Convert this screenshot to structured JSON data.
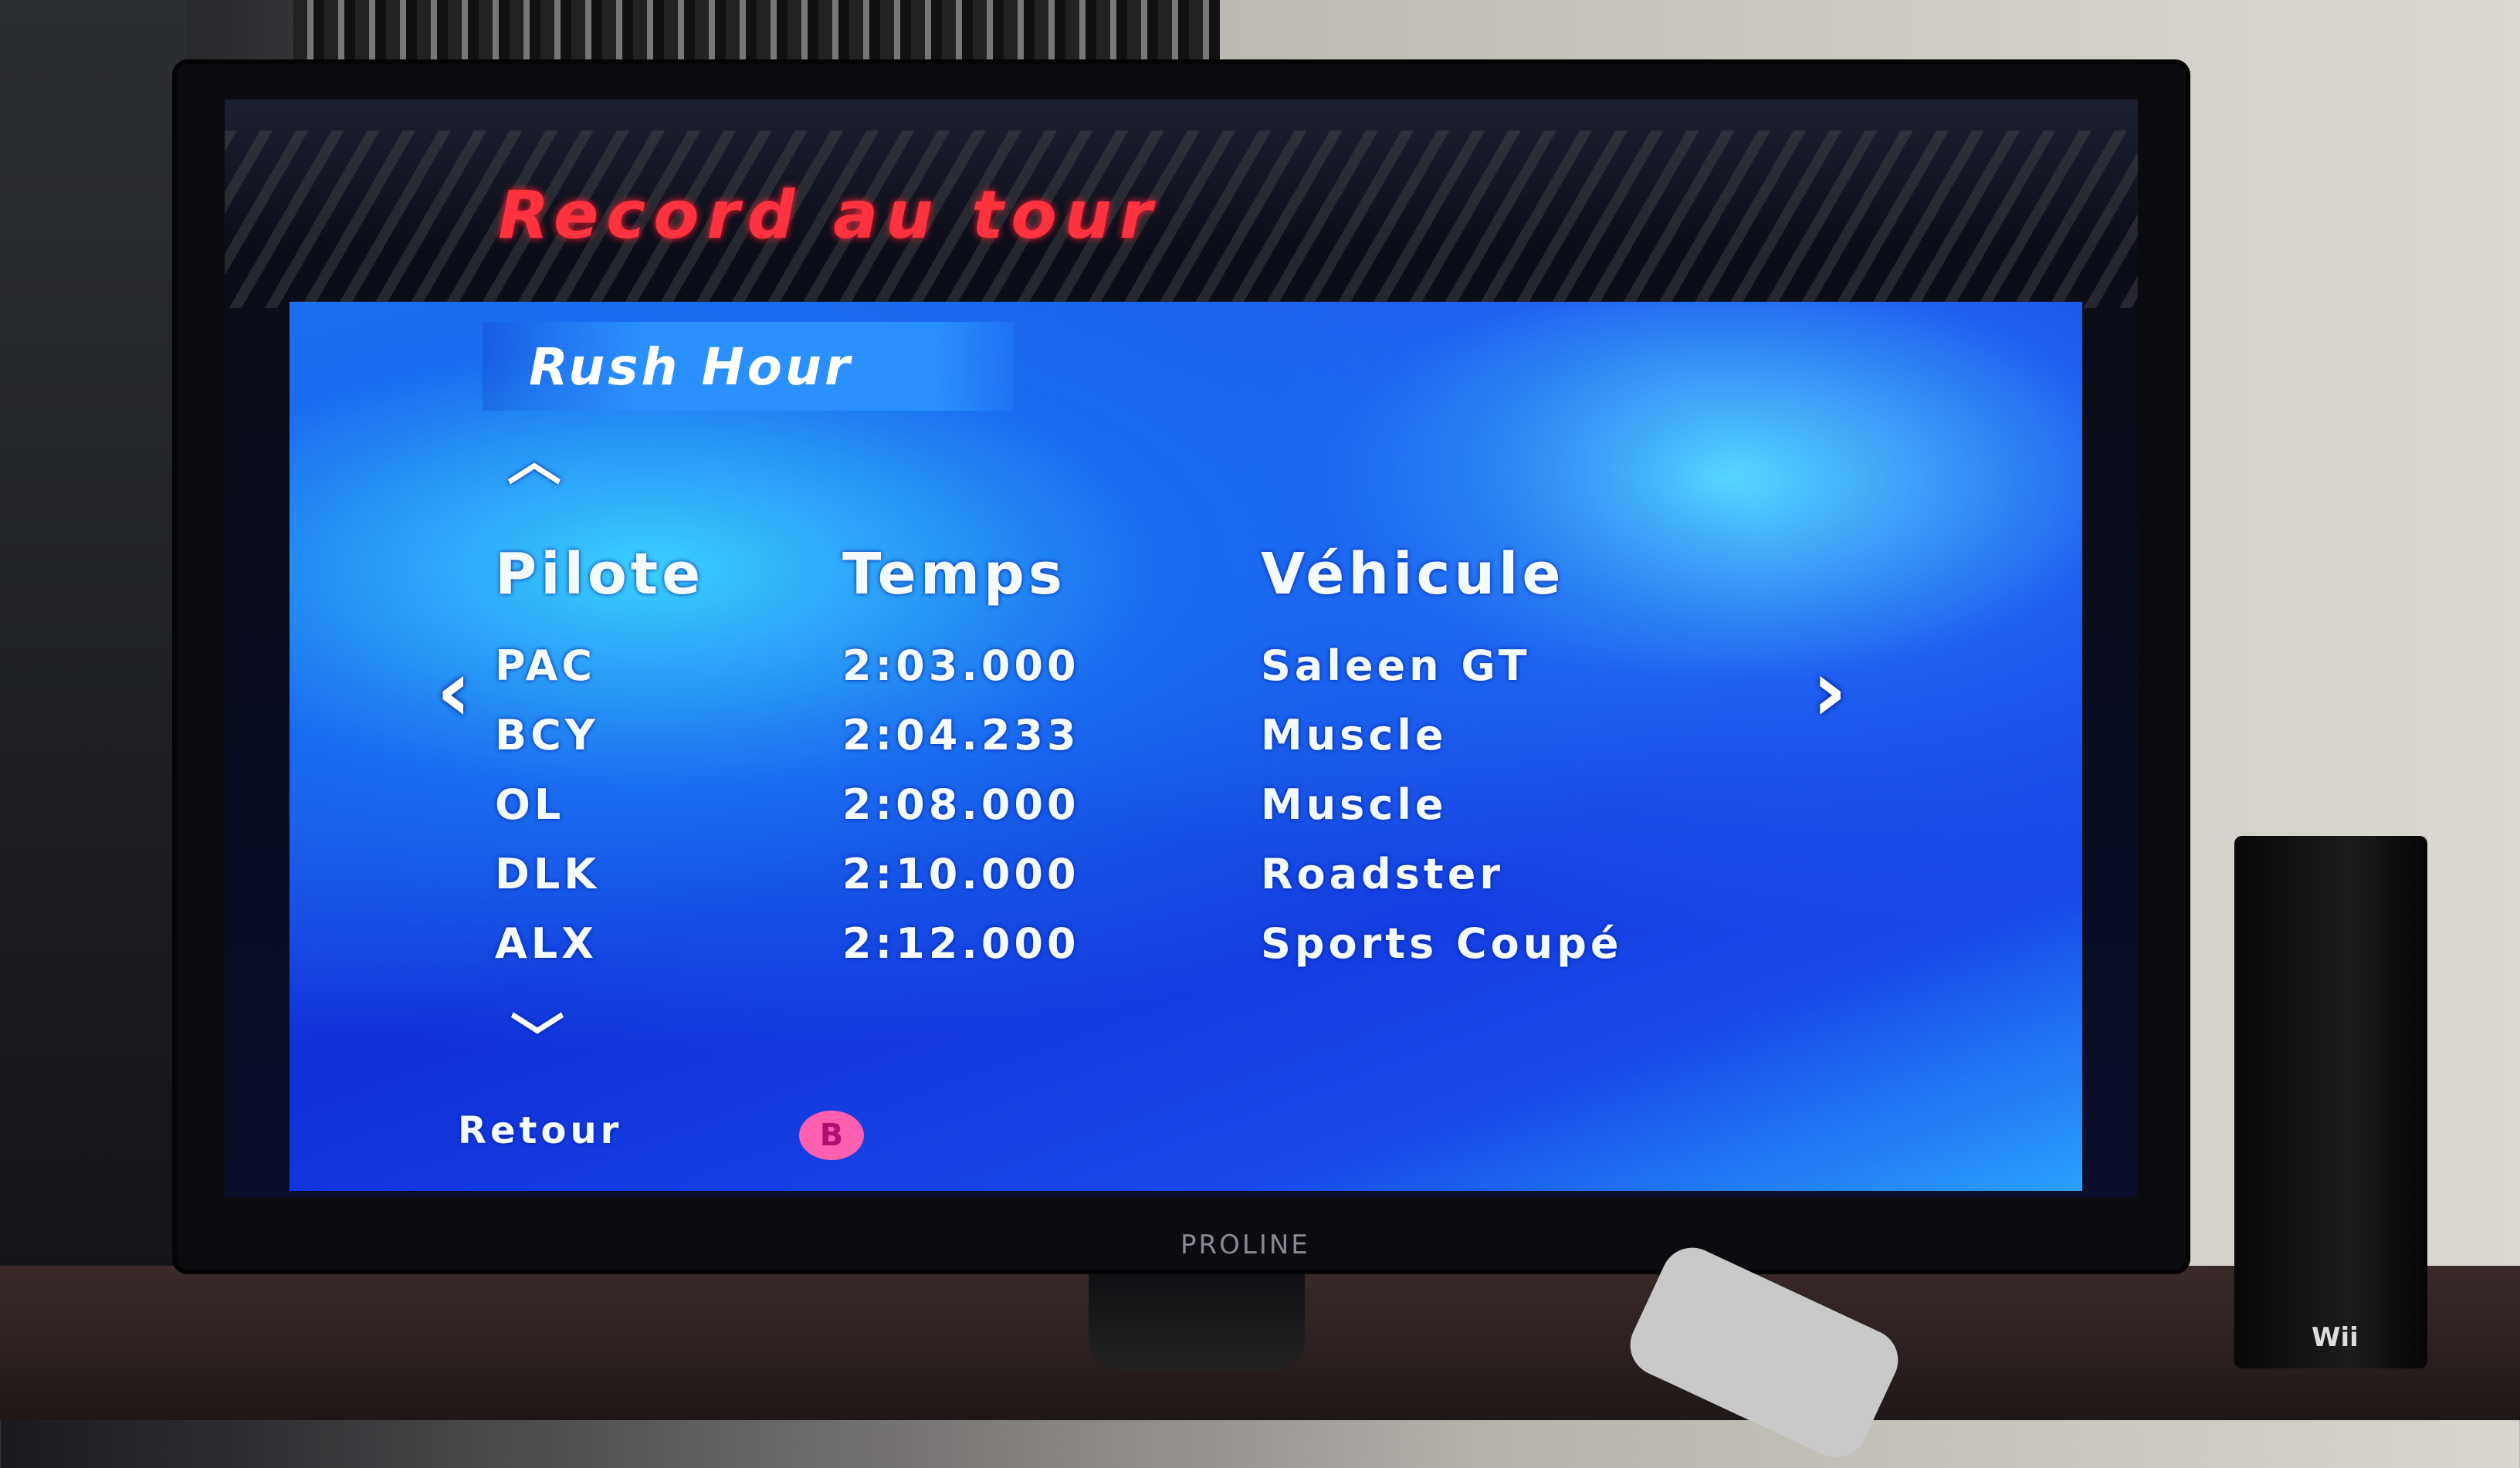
{
  "game": {
    "title": "Record au tour",
    "track": "Rush Hour",
    "columns": [
      "Pilote",
      "Temps",
      "Véhicule"
    ],
    "rows": [
      {
        "pilot": "PAC",
        "time": "2:03.000",
        "vehicle": "Saleen GT"
      },
      {
        "pilot": "BCY",
        "time": "2:04.233",
        "vehicle": "Muscle"
      },
      {
        "pilot": "OL",
        "time": "2:08.000",
        "vehicle": "Muscle"
      },
      {
        "pilot": "DLK",
        "time": "2:10.000",
        "vehicle": "Roadster"
      },
      {
        "pilot": "ALX",
        "time": "2:12.000",
        "vehicle": "Sports Coupé"
      }
    ],
    "back_label": "Retour",
    "back_button": "B",
    "colors": {
      "title": "#ff3340",
      "panel": "#1a4cf0",
      "b_button": "#ff5fb0"
    }
  },
  "tv": {
    "brand": "PROLINE"
  },
  "console": {
    "brand": "Wii"
  }
}
